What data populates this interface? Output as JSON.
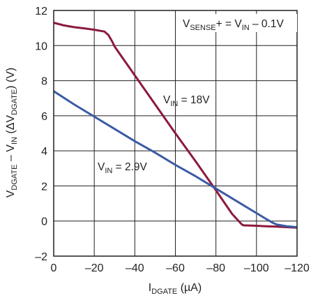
{
  "chart_data": {
    "type": "line",
    "xlabel": {
      "main": "I",
      "sub": "DGATE",
      "rest": " (µA)"
    },
    "ylabel": {
      "p1": "V",
      "s1": "DGATE",
      "p2": " – V",
      "s2": "IN",
      "p3": " (ΔV",
      "s3": "DGATE",
      "p4": ") (V)"
    },
    "xlim": [
      0,
      -120
    ],
    "ylim": [
      -2,
      12
    ],
    "x_ticks": [
      0,
      -20,
      -40,
      -60,
      -80,
      -100,
      -120
    ],
    "x_tick_labels": [
      "0",
      "–20",
      "–40",
      "–60",
      "–80",
      "–100",
      "–120"
    ],
    "y_ticks": [
      -2,
      0,
      2,
      4,
      6,
      8,
      10,
      12
    ],
    "y_tick_labels": [
      "–2",
      "0",
      "2",
      "4",
      "6",
      "8",
      "10",
      "12"
    ],
    "grid": true,
    "series": [
      {
        "name": "VIN = 18V",
        "label": {
          "main": "V",
          "sub": "IN",
          "rest": " = 18V"
        },
        "color": "#8b1a3c",
        "x": [
          0,
          -5,
          -10,
          -15,
          -20,
          -25,
          -27,
          -29,
          -30,
          -40,
          -50,
          -60,
          -70,
          -80,
          -88,
          -92,
          -93,
          -94,
          -95,
          -100,
          -105,
          -110,
          -115,
          -120
        ],
        "y": [
          11.3,
          11.15,
          11.05,
          10.98,
          10.9,
          10.8,
          10.6,
          10.2,
          9.95,
          8.3,
          6.65,
          5.0,
          3.4,
          1.75,
          0.4,
          -0.1,
          -0.22,
          -0.25,
          -0.25,
          -0.27,
          -0.3,
          -0.32,
          -0.35,
          -0.38
        ]
      },
      {
        "name": "VIN = 2.9V",
        "label": {
          "main": "V",
          "sub": "IN",
          "rest": " = 2.9V"
        },
        "color": "#3b5ba5",
        "x": [
          0,
          -10,
          -20,
          -30,
          -40,
          -50,
          -60,
          -70,
          -80,
          -90,
          -100,
          -105,
          -108,
          -110,
          -115,
          -120
        ],
        "y": [
          7.4,
          6.65,
          5.95,
          5.25,
          4.55,
          3.9,
          3.2,
          2.55,
          1.85,
          1.15,
          0.45,
          0.1,
          -0.1,
          -0.2,
          -0.3,
          -0.35
        ]
      }
    ],
    "annotation": {
      "p1": "V",
      "s1": "SENSE",
      "p2": "+ = V",
      "s2": "IN",
      "p3": " – 0.1V"
    }
  }
}
